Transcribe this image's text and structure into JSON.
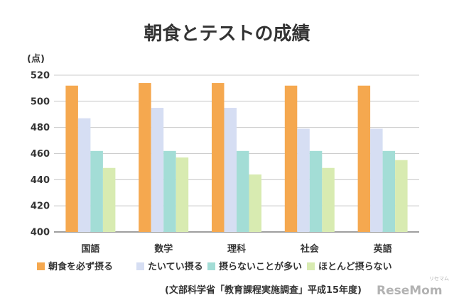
{
  "chart_data": {
    "type": "bar",
    "title": "朝食とテストの成績",
    "unit_label": "(点)",
    "ylim": [
      400,
      520
    ],
    "yticks": [
      400,
      420,
      440,
      460,
      480,
      500,
      520
    ],
    "grid": true,
    "categories": [
      "国語",
      "数学",
      "理科",
      "社会",
      "英語"
    ],
    "series": [
      {
        "name": "朝食を必ず摂る",
        "values": [
          512,
          514,
          514,
          512,
          512
        ],
        "color": "#f5a84f"
      },
      {
        "name": "たいてい摂る",
        "values": [
          487,
          495,
          495,
          479,
          479
        ],
        "color": "#d6def3"
      },
      {
        "name": "摂らないことが多い",
        "values": [
          462,
          462,
          462,
          462,
          462
        ],
        "color": "#a3ddd6"
      },
      {
        "name": "ほとんど摂らない",
        "values": [
          449,
          457,
          444,
          449,
          455
        ],
        "color": "#d8ebb1"
      }
    ],
    "legend_position": "bottom",
    "source": "(文部科学省「教育課程実施調査」平成15年度)",
    "watermark": "ReseMom",
    "watermark_small": "リセマム"
  }
}
